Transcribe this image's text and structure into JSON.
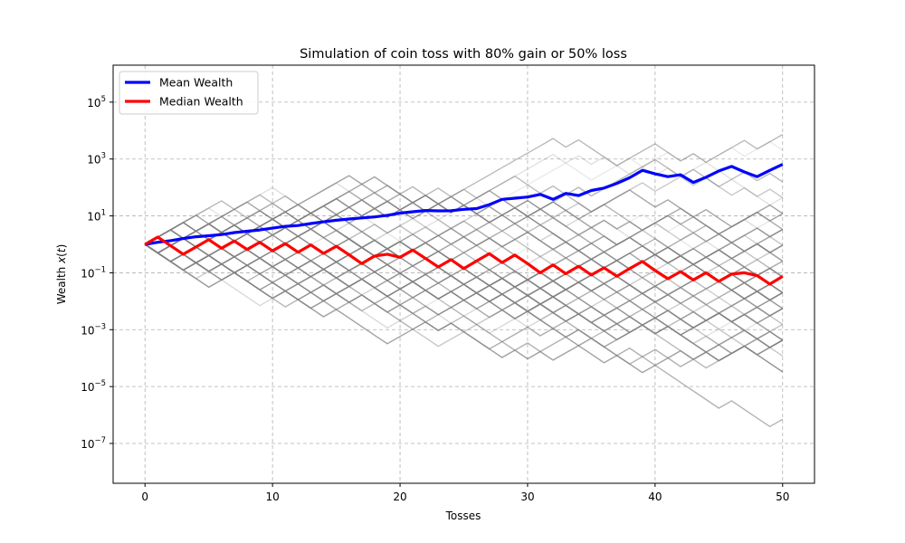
{
  "chart_data": {
    "type": "line",
    "title": "Simulation of coin toss with 80% gain or 50% loss",
    "xlabel": "Tosses",
    "ylabel": "Wealth x(t)",
    "xlim": [
      -2.5,
      52.5
    ],
    "ylim_log10": [
      -8.4,
      6.3
    ],
    "yscale": "log",
    "grid": true,
    "legend_position": "top-left",
    "x_ticks": [
      0,
      10,
      20,
      30,
      40,
      50
    ],
    "y_tick_exponents": [
      5,
      3,
      1,
      -1,
      -3,
      -5,
      -7
    ],
    "y_tick_base": "10",
    "gain_factor": 1.8,
    "loss_factor": 0.5,
    "background_paths": {
      "color": "#808080",
      "description": "many simulated wealth trajectories forming a lattice",
      "count": 60
    },
    "series": [
      {
        "name": "Mean Wealth",
        "color": "#0000ff",
        "x": [
          0,
          1,
          2,
          3,
          4,
          5,
          6,
          7,
          8,
          9,
          10,
          11,
          12,
          13,
          14,
          15,
          16,
          17,
          18,
          19,
          20,
          21,
          22,
          23,
          24,
          25,
          26,
          27,
          28,
          29,
          30,
          31,
          32,
          33,
          34,
          35,
          36,
          37,
          38,
          39,
          40,
          41,
          42,
          43,
          44,
          45,
          46,
          47,
          48,
          49,
          50
        ],
        "y": [
          1.0,
          1.18,
          1.35,
          1.6,
          1.85,
          2.0,
          2.2,
          2.6,
          2.9,
          3.2,
          3.7,
          4.3,
          4.6,
          5.4,
          6.2,
          7.0,
          7.8,
          8.5,
          9.2,
          10.5,
          12.5,
          14.0,
          15.5,
          15.0,
          15.2,
          17.0,
          18.0,
          25.0,
          38.0,
          42.0,
          46.0,
          57.0,
          38.0,
          62.0,
          52.0,
          78.0,
          95.0,
          140.0,
          220.0,
          400.0,
          300.0,
          240.0,
          280.0,
          150.0,
          230.0,
          380.0,
          550.0,
          350.0,
          240.0,
          400.0,
          650.0
        ]
      },
      {
        "name": "Median Wealth",
        "color": "#ff0000",
        "x": [
          0,
          1,
          2,
          3,
          4,
          5,
          6,
          7,
          8,
          9,
          10,
          11,
          12,
          13,
          14,
          15,
          16,
          17,
          18,
          19,
          20,
          21,
          22,
          23,
          24,
          25,
          26,
          27,
          28,
          29,
          30,
          31,
          32,
          33,
          34,
          35,
          36,
          37,
          38,
          39,
          40,
          41,
          42,
          43,
          44,
          45,
          46,
          47,
          48,
          49,
          50
        ],
        "y": [
          1.0,
          1.8,
          0.9,
          0.45,
          0.81,
          1.46,
          0.73,
          1.31,
          0.66,
          1.18,
          0.59,
          1.06,
          0.53,
          0.96,
          0.48,
          0.86,
          0.43,
          0.21,
          0.39,
          0.45,
          0.35,
          0.63,
          0.32,
          0.16,
          0.29,
          0.14,
          0.26,
          0.47,
          0.23,
          0.42,
          0.21,
          0.1,
          0.19,
          0.093,
          0.17,
          0.084,
          0.15,
          0.076,
          0.14,
          0.25,
          0.12,
          0.062,
          0.11,
          0.056,
          0.1,
          0.05,
          0.09,
          0.1,
          0.08,
          0.04,
          0.075
        ]
      }
    ]
  }
}
